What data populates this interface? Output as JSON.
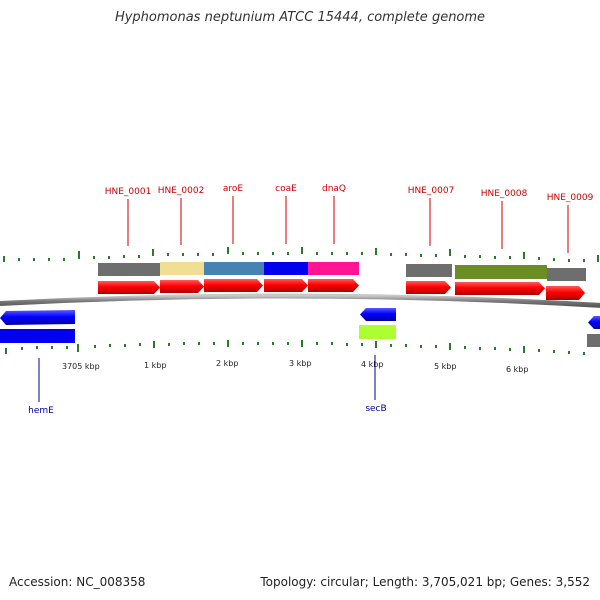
{
  "title": "Hyphomonas neptunium ATCC 15444, complete genome",
  "footer": {
    "accession": "Accession: NC_008358",
    "summary": "Topology: circular; Length: 3,705,021 bp; Genes: 3,552"
  },
  "colors": {
    "forward_gene": "#ff0000",
    "reverse_gene": "#0000ff",
    "forward_label": "#cc0000",
    "reverse_label": "#000099",
    "backbone": "#888888",
    "tick": "#2a7a2a",
    "cog_gray": "#6e6e6e",
    "cog_khaki": "#f0de92",
    "cog_steelblue": "#4682b4",
    "cog_blue": "#0000ee",
    "cog_magenta": "#ff1493",
    "cog_olive": "#6b8e23",
    "cog_lime": "#adff2f"
  },
  "forward_labels": [
    "HNE_0001",
    "HNE_0002",
    "aroE",
    "coaE",
    "dnaQ",
    "HNE_0007",
    "HNE_0008",
    "HNE_0009"
  ],
  "reverse_labels": [
    "hemE",
    "secB"
  ],
  "tick_labels": [
    "3705 kbp",
    "1 kbp",
    "2 kbp",
    "3 kbp",
    "4 kbp",
    "5 kbp",
    "6 kbp"
  ]
}
